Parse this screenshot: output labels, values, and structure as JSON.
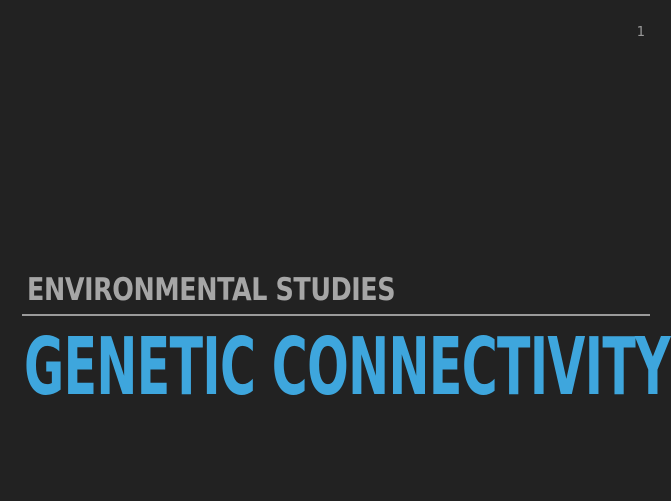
{
  "slide": {
    "number": "1",
    "subtitle": "ENVIRONMENTAL STUDIES",
    "title": "GENETIC CONNECTIVITY",
    "colors": {
      "background": "#222222",
      "subtitle": "#a6a6a6",
      "title": "#3ea6dd",
      "divider": "#9b9b9b"
    }
  }
}
